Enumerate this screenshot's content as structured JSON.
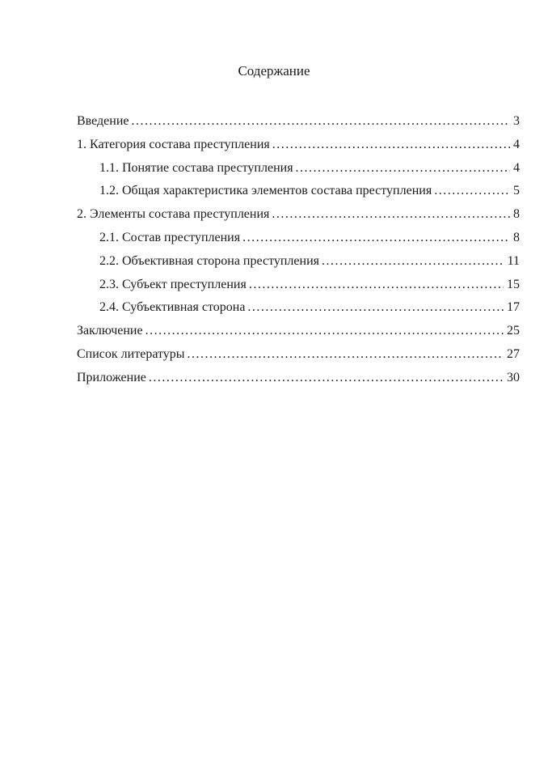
{
  "page": {
    "title": "Содержание"
  },
  "toc": {
    "entries": [
      {
        "label": "Введение",
        "page": "3",
        "level": 0
      },
      {
        "label": "1. Категория состава преступления",
        "page": "4",
        "level": 0
      },
      {
        "label": "1.1. Понятие состава преступления",
        "page": "4",
        "level": 1
      },
      {
        "label": "1.2. Общая характеристика элементов состава преступления",
        "page": "5",
        "level": 1
      },
      {
        "label": "2. Элементы состава преступления",
        "page": "8",
        "level": 0
      },
      {
        "label": "2.1. Состав преступления",
        "page": "8",
        "level": 1
      },
      {
        "label": "2.2. Объективная сторона преступления",
        "page": "11",
        "level": 1
      },
      {
        "label": "2.3. Субъект преступления",
        "page": "15",
        "level": 1
      },
      {
        "label": "2.4. Субъективная сторона",
        "page": "17",
        "level": 1
      },
      {
        "label": "Заключение",
        "page": "25",
        "level": 0
      },
      {
        "label": "Список литературы",
        "page": "27",
        "level": 0
      },
      {
        "label": "Приложение",
        "page": "30",
        "level": 0
      }
    ]
  }
}
